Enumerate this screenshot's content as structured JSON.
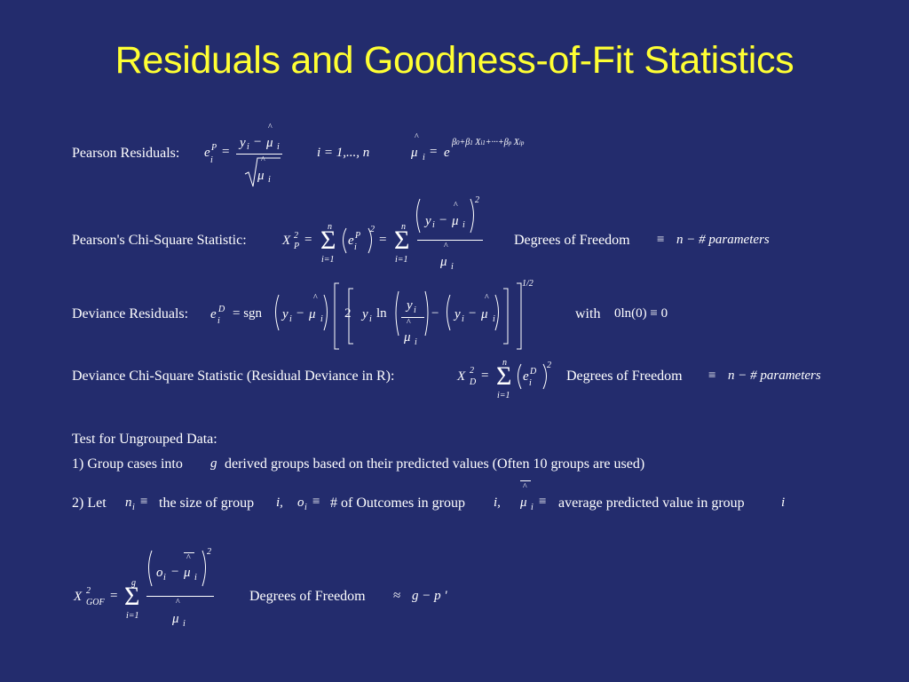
{
  "title": "Residuals and Goodness-of-Fit Statistics",
  "pearson_residuals": {
    "label": "Pearson Residuals:",
    "index_range": "i = 1,..., n"
  },
  "pearson_chi_square": {
    "label": "Pearson's Chi-Square Statistic:",
    "df_label": "Degrees of Freedom",
    "df_value": "n − # parameters"
  },
  "deviance_residuals": {
    "label": "Deviance Residuals:",
    "note_with": "with",
    "note_expr": "0ln(0) ≡ 0"
  },
  "deviance_chi_square": {
    "label": "Deviance Chi-Square Statistic (Residual Deviance in R):",
    "df_label": "Degrees of Freedom",
    "df_value": "n − # parameters"
  },
  "ungrouped_test": {
    "heading": "Test for Ungrouped Data:",
    "step1": {
      "prefix": "1)  Group cases into",
      "var": "g",
      "suffix": "derived groups based on their predicted values  (Often 10 groups are used)"
    },
    "step2": {
      "prefix": "2)  Let",
      "n_def": "the size of group",
      "o_def": "# of Outcomes in group",
      "mu_def": "average predicted value in group"
    }
  },
  "gof": {
    "df_label": "Degrees of Freedom",
    "df_value": "g − p '"
  },
  "colors": {
    "background": "#232c6d",
    "title": "#ffff33",
    "text": "#ffffff"
  }
}
